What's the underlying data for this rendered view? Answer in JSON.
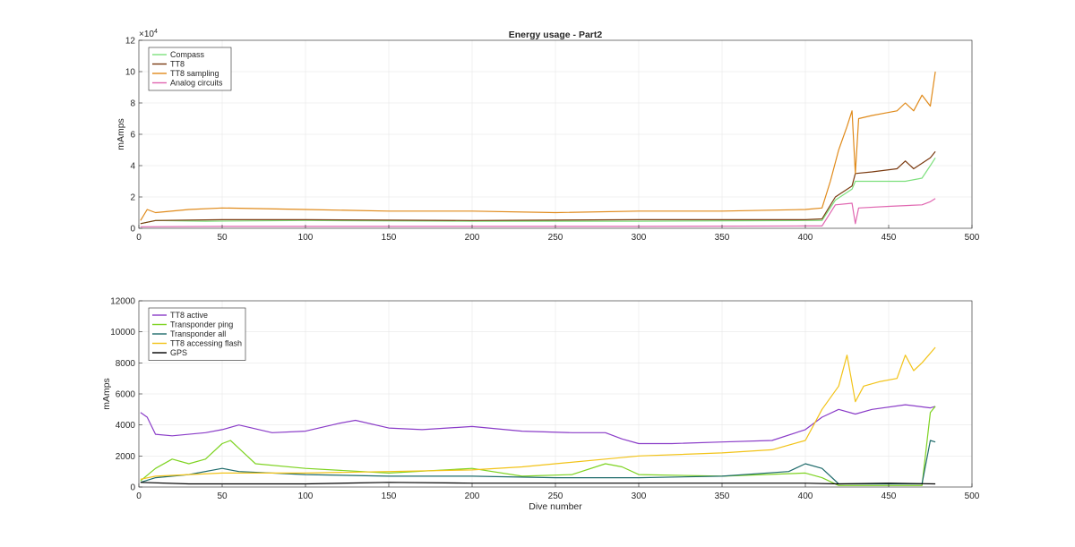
{
  "chart_data": [
    {
      "type": "line",
      "title": "Energy usage - Part2",
      "xlabel": "",
      "ylabel": "mAmps",
      "exponent_label": "×10^4",
      "exponent_base": "×10",
      "exponent_power": "4",
      "xlim": [
        0,
        500
      ],
      "ylim": [
        0,
        12
      ],
      "xticks": [
        "0",
        "50",
        "100",
        "150",
        "200",
        "250",
        "300",
        "350",
        "400",
        "450",
        "500"
      ],
      "yticks": [
        "0",
        "2",
        "4",
        "6",
        "8",
        "10",
        "12"
      ],
      "grid": true,
      "legend_position": "top-left",
      "series": [
        {
          "name": "Compass",
          "color": "#7ee07e",
          "points": [
            [
              1,
              0.3
            ],
            [
              10,
              0.5
            ],
            [
              40,
              0.45
            ],
            [
              100,
              0.5
            ],
            [
              200,
              0.45
            ],
            [
              300,
              0.45
            ],
            [
              400,
              0.5
            ],
            [
              410,
              0.5
            ],
            [
              418,
              1.8
            ],
            [
              428,
              2.5
            ],
            [
              430,
              3.0
            ],
            [
              440,
              3.0
            ],
            [
              460,
              3.0
            ],
            [
              470,
              3.2
            ],
            [
              475,
              4.0
            ],
            [
              478,
              4.5
            ]
          ]
        },
        {
          "name": "TT8",
          "color": "#7a3a10",
          "points": [
            [
              1,
              0.3
            ],
            [
              10,
              0.5
            ],
            [
              50,
              0.55
            ],
            [
              100,
              0.55
            ],
            [
              200,
              0.5
            ],
            [
              300,
              0.55
            ],
            [
              400,
              0.55
            ],
            [
              410,
              0.6
            ],
            [
              418,
              2.0
            ],
            [
              428,
              2.7
            ],
            [
              430,
              3.5
            ],
            [
              440,
              3.6
            ],
            [
              455,
              3.8
            ],
            [
              460,
              4.3
            ],
            [
              465,
              3.8
            ],
            [
              475,
              4.5
            ],
            [
              478,
              4.9
            ]
          ]
        },
        {
          "name": "TT8 sampling",
          "color": "#e08a1a",
          "points": [
            [
              1,
              0.5
            ],
            [
              5,
              1.2
            ],
            [
              10,
              1.0
            ],
            [
              30,
              1.2
            ],
            [
              50,
              1.3
            ],
            [
              100,
              1.2
            ],
            [
              150,
              1.1
            ],
            [
              200,
              1.1
            ],
            [
              250,
              1.0
            ],
            [
              300,
              1.1
            ],
            [
              350,
              1.1
            ],
            [
              400,
              1.2
            ],
            [
              410,
              1.3
            ],
            [
              415,
              3.0
            ],
            [
              420,
              5.0
            ],
            [
              425,
              6.5
            ],
            [
              428,
              7.5
            ],
            [
              430,
              3.5
            ],
            [
              432,
              7.0
            ],
            [
              440,
              7.2
            ],
            [
              455,
              7.5
            ],
            [
              460,
              8.0
            ],
            [
              465,
              7.5
            ],
            [
              470,
              8.5
            ],
            [
              475,
              7.8
            ],
            [
              478,
              10.0
            ]
          ]
        },
        {
          "name": "Analog circuits",
          "color": "#e066b0",
          "points": [
            [
              1,
              0.1
            ],
            [
              50,
              0.12
            ],
            [
              100,
              0.12
            ],
            [
              200,
              0.12
            ],
            [
              300,
              0.12
            ],
            [
              400,
              0.15
            ],
            [
              410,
              0.15
            ],
            [
              418,
              1.5
            ],
            [
              428,
              1.6
            ],
            [
              430,
              0.3
            ],
            [
              432,
              1.3
            ],
            [
              450,
              1.4
            ],
            [
              470,
              1.5
            ],
            [
              475,
              1.7
            ],
            [
              478,
              1.9
            ]
          ]
        }
      ]
    },
    {
      "type": "line",
      "title": "",
      "xlabel": "Dive number",
      "ylabel": "mAmps",
      "xlim": [
        0,
        500
      ],
      "ylim": [
        0,
        12000
      ],
      "xticks": [
        "0",
        "50",
        "100",
        "150",
        "200",
        "250",
        "300",
        "350",
        "400",
        "450",
        "500"
      ],
      "yticks": [
        "0",
        "2000",
        "4000",
        "6000",
        "8000",
        "10000",
        "12000"
      ],
      "grid": true,
      "legend_position": "top-left",
      "series": [
        {
          "name": "TT8 active",
          "color": "#8a3cc8",
          "points": [
            [
              1,
              4800
            ],
            [
              5,
              4500
            ],
            [
              10,
              3400
            ],
            [
              20,
              3300
            ],
            [
              40,
              3500
            ],
            [
              50,
              3700
            ],
            [
              60,
              4000
            ],
            [
              80,
              3500
            ],
            [
              100,
              3600
            ],
            [
              120,
              4100
            ],
            [
              130,
              4300
            ],
            [
              150,
              3800
            ],
            [
              170,
              3700
            ],
            [
              200,
              3900
            ],
            [
              230,
              3600
            ],
            [
              260,
              3500
            ],
            [
              280,
              3500
            ],
            [
              290,
              3100
            ],
            [
              300,
              2800
            ],
            [
              320,
              2800
            ],
            [
              350,
              2900
            ],
            [
              380,
              3000
            ],
            [
              400,
              3700
            ],
            [
              410,
              4500
            ],
            [
              420,
              5000
            ],
            [
              430,
              4700
            ],
            [
              440,
              5000
            ],
            [
              460,
              5300
            ],
            [
              475,
              5100
            ],
            [
              478,
              5200
            ]
          ]
        },
        {
          "name": "Transponder ping",
          "color": "#7ed321",
          "points": [
            [
              1,
              400
            ],
            [
              10,
              1200
            ],
            [
              20,
              1800
            ],
            [
              30,
              1500
            ],
            [
              40,
              1800
            ],
            [
              50,
              2800
            ],
            [
              55,
              3000
            ],
            [
              60,
              2500
            ],
            [
              70,
              1500
            ],
            [
              100,
              1200
            ],
            [
              150,
              900
            ],
            [
              200,
              1200
            ],
            [
              230,
              700
            ],
            [
              260,
              800
            ],
            [
              280,
              1500
            ],
            [
              290,
              1300
            ],
            [
              300,
              800
            ],
            [
              350,
              700
            ],
            [
              400,
              900
            ],
            [
              410,
              600
            ],
            [
              420,
              100
            ],
            [
              470,
              100
            ],
            [
              475,
              4800
            ],
            [
              478,
              5200
            ]
          ]
        },
        {
          "name": "Transponder all",
          "color": "#1f6b6b",
          "points": [
            [
              1,
              300
            ],
            [
              10,
              600
            ],
            [
              30,
              800
            ],
            [
              50,
              1200
            ],
            [
              60,
              1000
            ],
            [
              100,
              800
            ],
            [
              150,
              700
            ],
            [
              200,
              700
            ],
            [
              250,
              600
            ],
            [
              300,
              600
            ],
            [
              350,
              700
            ],
            [
              390,
              1000
            ],
            [
              400,
              1500
            ],
            [
              410,
              1200
            ],
            [
              420,
              200
            ],
            [
              470,
              200
            ],
            [
              475,
              3000
            ],
            [
              478,
              2900
            ]
          ]
        },
        {
          "name": "TT8 accessing flash",
          "color": "#f2c318",
          "points": [
            [
              1,
              500
            ],
            [
              10,
              700
            ],
            [
              50,
              900
            ],
            [
              100,
              900
            ],
            [
              150,
              1000
            ],
            [
              200,
              1100
            ],
            [
              230,
              1300
            ],
            [
              250,
              1500
            ],
            [
              280,
              1800
            ],
            [
              300,
              2000
            ],
            [
              350,
              2200
            ],
            [
              380,
              2400
            ],
            [
              400,
              3000
            ],
            [
              405,
              4000
            ],
            [
              410,
              5000
            ],
            [
              420,
              6500
            ],
            [
              425,
              8500
            ],
            [
              430,
              5500
            ],
            [
              435,
              6500
            ],
            [
              445,
              6800
            ],
            [
              455,
              7000
            ],
            [
              460,
              8500
            ],
            [
              465,
              7500
            ],
            [
              470,
              8000
            ],
            [
              478,
              9000
            ]
          ]
        },
        {
          "name": "GPS",
          "color": "#000000",
          "points": [
            [
              1,
              300
            ],
            [
              30,
              200
            ],
            [
              60,
              200
            ],
            [
              100,
              200
            ],
            [
              150,
              300
            ],
            [
              200,
              250
            ],
            [
              250,
              250
            ],
            [
              300,
              250
            ],
            [
              350,
              250
            ],
            [
              400,
              250
            ],
            [
              420,
              200
            ],
            [
              450,
              250
            ],
            [
              478,
              200
            ]
          ]
        }
      ]
    }
  ]
}
